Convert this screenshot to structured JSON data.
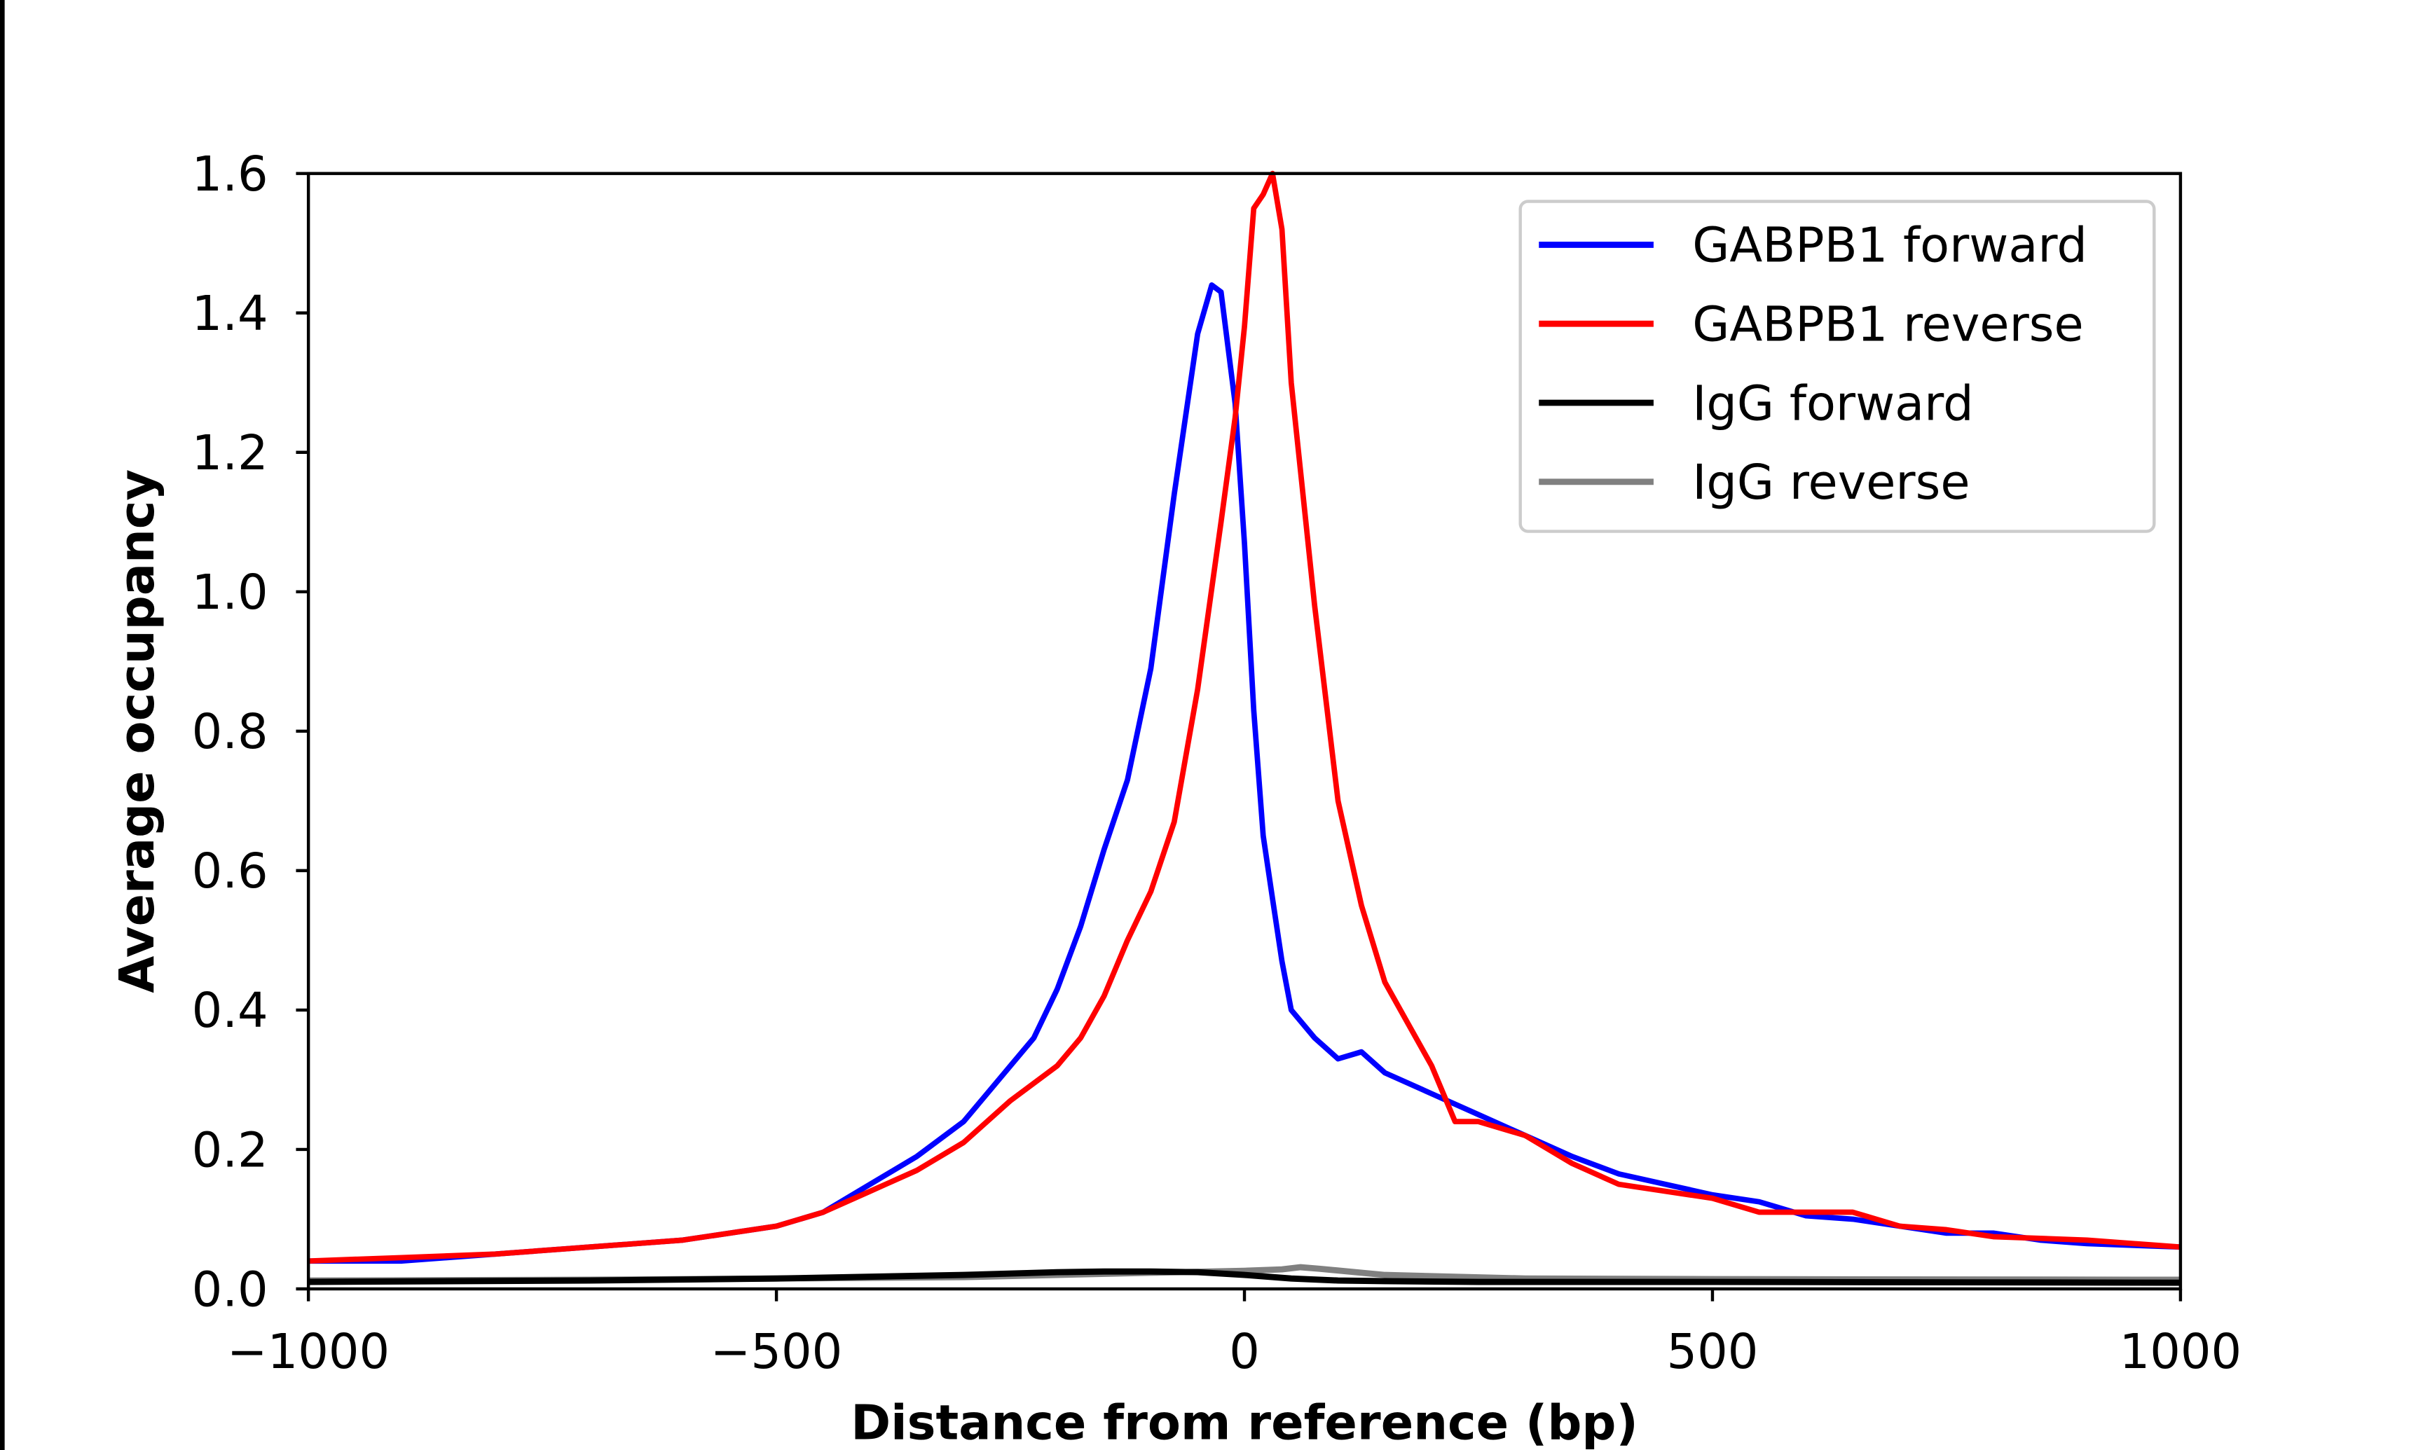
{
  "chart_data": {
    "type": "line",
    "title": "",
    "xlabel": "Distance from reference (bp)",
    "ylabel": "Average occupancy",
    "xlim": [
      -1000,
      1000
    ],
    "ylim": [
      0,
      1.6
    ],
    "xticks": [
      -1000,
      -500,
      0,
      500,
      1000
    ],
    "xtick_labels": [
      "−1000",
      "−500",
      "0",
      "500",
      "1000"
    ],
    "yticks": [
      0,
      0.2,
      0.4,
      0.6,
      0.8,
      1.0,
      1.2,
      1.4,
      1.6
    ],
    "ytick_labels": [
      "0.0",
      "0.2",
      "0.4",
      "0.6",
      "0.8",
      "1.0",
      "1.2",
      "1.4",
      "1.6"
    ],
    "grid": false,
    "legend_position": "top-right",
    "series": [
      {
        "name": "GABPB1 forward",
        "color": "#0000ff",
        "x": [
          -1000,
          -900,
          -800,
          -700,
          -600,
          -500,
          -450,
          -400,
          -350,
          -300,
          -250,
          -225,
          -200,
          -175,
          -150,
          -125,
          -100,
          -75,
          -50,
          -35,
          -25,
          -10,
          0,
          10,
          20,
          30,
          40,
          50,
          75,
          100,
          125,
          150,
          200,
          250,
          300,
          350,
          400,
          450,
          500,
          550,
          600,
          650,
          700,
          750,
          800,
          850,
          900,
          1000
        ],
        "y": [
          0.04,
          0.04,
          0.05,
          0.06,
          0.07,
          0.09,
          0.11,
          0.15,
          0.19,
          0.24,
          0.32,
          0.36,
          0.43,
          0.52,
          0.63,
          0.73,
          0.89,
          1.14,
          1.37,
          1.44,
          1.43,
          1.27,
          1.07,
          0.83,
          0.65,
          0.56,
          0.47,
          0.4,
          0.36,
          0.33,
          0.34,
          0.31,
          0.28,
          0.25,
          0.22,
          0.19,
          0.165,
          0.15,
          0.135,
          0.125,
          0.105,
          0.1,
          0.09,
          0.08,
          0.08,
          0.07,
          0.065,
          0.06
        ]
      },
      {
        "name": "GABPB1 reverse",
        "color": "#ff0000",
        "x": [
          -1000,
          -900,
          -800,
          -700,
          -600,
          -500,
          -450,
          -400,
          -350,
          -300,
          -250,
          -200,
          -175,
          -150,
          -125,
          -100,
          -75,
          -50,
          -25,
          -10,
          0,
          10,
          20,
          30,
          40,
          50,
          75,
          100,
          125,
          150,
          175,
          200,
          225,
          250,
          300,
          350,
          400,
          450,
          500,
          550,
          600,
          650,
          700,
          750,
          800,
          900,
          1000
        ],
        "y": [
          0.04,
          0.045,
          0.05,
          0.06,
          0.07,
          0.09,
          0.11,
          0.14,
          0.17,
          0.21,
          0.27,
          0.32,
          0.36,
          0.42,
          0.5,
          0.57,
          0.67,
          0.86,
          1.1,
          1.25,
          1.38,
          1.55,
          1.57,
          1.6,
          1.52,
          1.3,
          0.98,
          0.7,
          0.55,
          0.44,
          0.38,
          0.32,
          0.24,
          0.24,
          0.22,
          0.18,
          0.15,
          0.14,
          0.13,
          0.11,
          0.11,
          0.11,
          0.09,
          0.085,
          0.075,
          0.07,
          0.06
        ]
      },
      {
        "name": "IgG forward",
        "color": "#000000",
        "x": [
          -1000,
          -700,
          -500,
          -300,
          -200,
          -150,
          -100,
          -50,
          0,
          50,
          100,
          150,
          250,
          500,
          1000
        ],
        "y": [
          0.01,
          0.012,
          0.015,
          0.02,
          0.024,
          0.025,
          0.025,
          0.024,
          0.02,
          0.015,
          0.012,
          0.011,
          0.01,
          0.01,
          0.009
        ]
      },
      {
        "name": "IgG reverse",
        "color": "#808080",
        "x": [
          -1000,
          -700,
          -500,
          -300,
          -200,
          -100,
          0,
          40,
          60,
          80,
          150,
          300,
          500,
          1000
        ],
        "y": [
          0.012,
          0.013,
          0.015,
          0.017,
          0.02,
          0.023,
          0.026,
          0.028,
          0.031,
          0.029,
          0.02,
          0.015,
          0.014,
          0.013
        ]
      }
    ]
  }
}
